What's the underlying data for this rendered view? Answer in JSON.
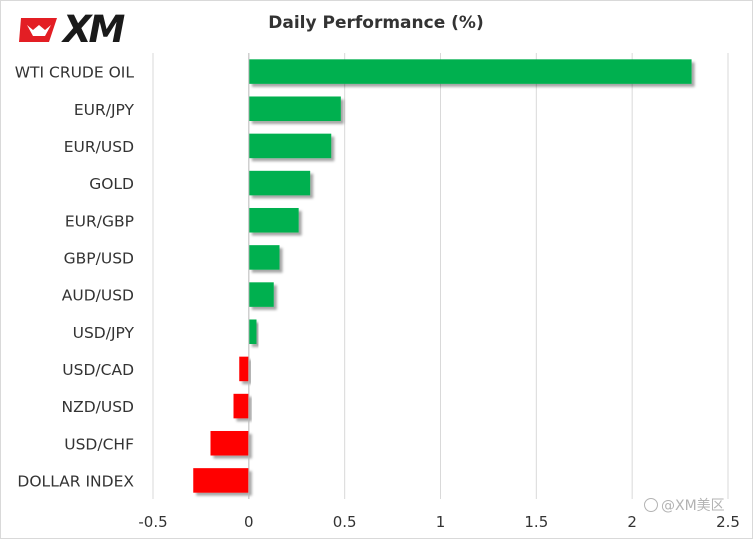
{
  "brand": {
    "logo_text": "XM",
    "watermark": "@XM美区"
  },
  "colors": {
    "positive": "#00b050",
    "negative": "#ff0000",
    "grid": "#d9d9d9",
    "axis_text": "#333333"
  },
  "chart_data": {
    "type": "bar",
    "orientation": "horizontal",
    "title": "Daily Performance  (%)",
    "xlabel": "",
    "ylabel": "",
    "categories": [
      "WTI CRUDE OIL",
      "EUR/JPY",
      "EUR/USD",
      "GOLD",
      "EUR/GBP",
      "GBP/USD",
      "AUD/USD",
      "USD/JPY",
      "USD/CAD",
      "NZD/USD",
      "USD/CHF",
      "DOLLAR INDEX"
    ],
    "values": [
      2.31,
      0.48,
      0.43,
      0.32,
      0.26,
      0.16,
      0.13,
      0.04,
      -0.05,
      -0.08,
      -0.2,
      -0.29
    ],
    "xlim": [
      -0.5,
      2.5
    ],
    "xticks": [
      "-0.5",
      "0",
      "0.5",
      "1",
      "1.5",
      "2",
      "2.5"
    ],
    "grid": "vertical",
    "legend": "none"
  }
}
